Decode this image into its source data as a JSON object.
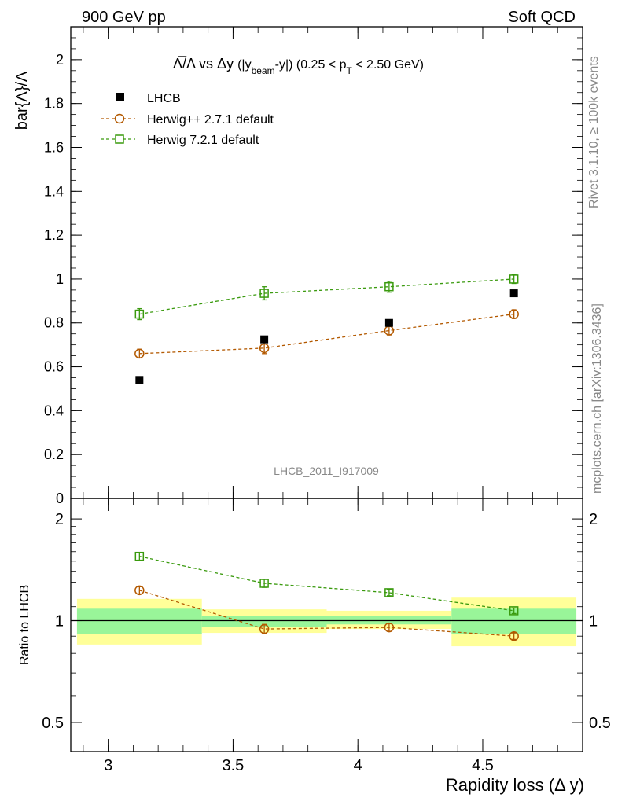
{
  "header": {
    "left": "900 GeV pp",
    "right": "Soft QCD"
  },
  "side_labels": {
    "rivet": "Rivet 3.1.10, ≥ 100k events",
    "mcplots": "mcplots.cern.ch [arXiv:1306.3436]"
  },
  "watermark": "LHCB_2011_I917009",
  "colors": {
    "data": "#000000",
    "herwigpp": "#b35900",
    "herwig7": "#3a9a0e",
    "band_inner": "#99f599",
    "band_outer": "#ffff99"
  },
  "chart_data": [
    {
      "type": "scatter",
      "title_parts": {
        "ratio": "Λ̅/Λ vs Δy",
        "paren_open": "(|y",
        "sub_beam": "beam",
        "paren_mid": "-y|) (0.25 < p",
        "sub_t": "T",
        "paren_end": " < 2.50 GeV)"
      },
      "ylabel": "bar{Λ}/Λ",
      "ylim": [
        0,
        2.15
      ],
      "yticks": [
        "0",
        "0.2",
        "0.4",
        "0.6",
        "0.8",
        "1",
        "1.2",
        "1.4",
        "1.6",
        "1.8",
        "2"
      ],
      "grid": false,
      "legend_position": "top-left",
      "x": [
        3.125,
        3.625,
        4.125,
        4.625
      ],
      "series": [
        {
          "name": "LHCB",
          "values": [
            0.54,
            0.725,
            0.8,
            0.935
          ],
          "marker": "filled-square"
        },
        {
          "name": "Herwig++ 2.7.1 default",
          "values": [
            0.66,
            0.685,
            0.765,
            0.84
          ],
          "errors": [
            0.02,
            0.025,
            0.02,
            0.02
          ],
          "marker": "open-circle"
        },
        {
          "name": "Herwig 7.2.1 default",
          "values": [
            0.84,
            0.935,
            0.965,
            1.0
          ],
          "errors": [
            0.025,
            0.03,
            0.025,
            0.02
          ],
          "marker": "open-square"
        }
      ]
    },
    {
      "type": "scatter",
      "ylabel": "Ratio to LHCB",
      "ylim": [
        0.41,
        2.3
      ],
      "log_y": true,
      "yticks": [
        "0.5",
        "1",
        "2"
      ],
      "xlabel": "Rapidity loss (Δ y)",
      "xlim": [
        2.85,
        4.9
      ],
      "xticks": [
        "3",
        "3.5",
        "4",
        "4.5"
      ],
      "bins": [
        [
          2.875,
          3.375
        ],
        [
          3.375,
          3.875
        ],
        [
          3.875,
          4.375
        ],
        [
          4.375,
          4.875
        ]
      ],
      "band_inner": [
        [
          0.915,
          1.085
        ],
        [
          0.96,
          1.035
        ],
        [
          0.975,
          1.03
        ],
        [
          0.915,
          1.085
        ]
      ],
      "band_outer": [
        [
          0.85,
          1.16
        ],
        [
          0.92,
          1.08
        ],
        [
          0.945,
          1.07
        ],
        [
          0.84,
          1.17
        ]
      ],
      "x": [
        3.125,
        3.625,
        4.125,
        4.625
      ],
      "series": [
        {
          "name": "Herwig++ 2.7.1 default",
          "values": [
            1.23,
            0.945,
            0.955,
            0.9
          ],
          "errors": [
            0.03,
            0.03,
            0.025,
            0.02
          ]
        },
        {
          "name": "Herwig 7.2.1 default",
          "values": [
            1.55,
            1.29,
            1.21,
            1.07
          ],
          "errors": [
            0.04,
            0.035,
            0.025,
            0.02
          ]
        }
      ]
    }
  ]
}
